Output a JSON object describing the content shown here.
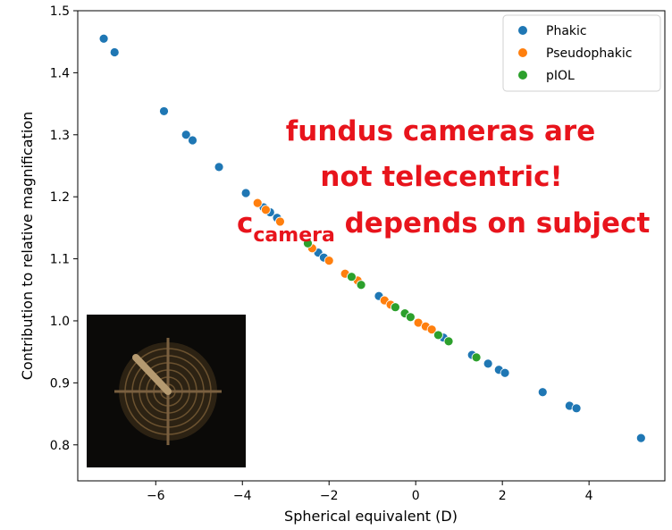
{
  "chart_data": {
    "type": "scatter",
    "xlabel": "Spherical equivalent (D)",
    "ylabel": "Contribution to relative magnification",
    "xlim": [
      -7.8,
      5.75
    ],
    "ylim": [
      0.742,
      1.5
    ],
    "xticks": [
      {
        "value": -6,
        "label": "−6"
      },
      {
        "value": -4,
        "label": "−4"
      },
      {
        "value": -2,
        "label": "−2"
      },
      0,
      2,
      4
    ],
    "yticks": [
      0.8,
      0.9,
      {
        "value": 1.0,
        "label": "1.0"
      },
      1.1,
      1.2,
      1.3,
      1.4,
      1.5
    ],
    "legend": "upper right",
    "series": [
      {
        "name": "Phakic",
        "color": "#1f77b4",
        "x": [
          -7.2,
          -6.95,
          -5.81,
          -5.3,
          -5.15,
          -4.54,
          -3.92,
          -3.51,
          -3.36,
          -3.2,
          -2.25,
          -2.12,
          -0.85,
          0.64,
          1.3,
          1.67,
          1.92,
          2.06,
          2.93,
          3.55,
          3.71,
          5.2
        ],
        "values": [
          1.455,
          1.433,
          1.338,
          1.3,
          1.291,
          1.248,
          1.206,
          1.183,
          1.175,
          1.166,
          1.11,
          1.102,
          1.04,
          0.973,
          0.945,
          0.931,
          0.921,
          0.916,
          0.885,
          0.863,
          0.859,
          0.811
        ]
      },
      {
        "name": "Pseudophakic",
        "color": "#ff7f0e",
        "x": [
          -3.65,
          -3.46,
          -3.13,
          -2.39,
          -2.0,
          -1.63,
          -1.34,
          -0.72,
          -0.58,
          0.06,
          0.23,
          0.37
        ],
        "values": [
          1.19,
          1.179,
          1.16,
          1.117,
          1.097,
          1.076,
          1.065,
          1.033,
          1.026,
          0.997,
          0.991,
          0.986
        ]
      },
      {
        "name": "pIOL",
        "color": "#2ca02c",
        "x": [
          -2.49,
          -1.48,
          -1.26,
          -0.47,
          -0.25,
          -0.12,
          0.52,
          0.76,
          1.4
        ],
        "values": [
          1.125,
          1.071,
          1.058,
          1.022,
          1.012,
          1.006,
          0.977,
          0.967,
          0.941
        ]
      }
    ],
    "annotation": {
      "line1": "fundus cameras are",
      "line2": "not telecentric!",
      "line3_main": "c",
      "line3_sub": "camera",
      "line3_rest": " depends on subject"
    }
  }
}
